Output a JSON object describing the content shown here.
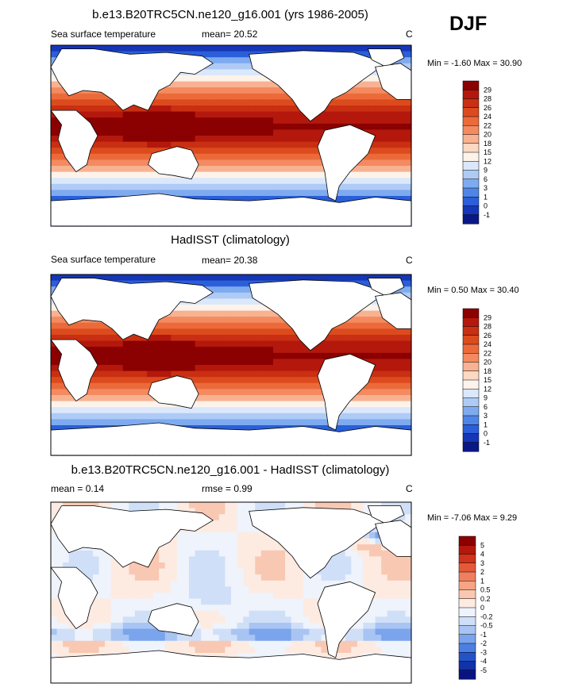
{
  "page": {
    "season": "DJF"
  },
  "panels": [
    {
      "title": "b.e13.B20TRC5CN.ne120_g16.001 (yrs 1986-2005)",
      "left_label": "Sea surface temperature",
      "center_label": "mean=  20.52",
      "units": "C",
      "minmax": "Min =  -1.60 Max =  30.90"
    },
    {
      "title": "HadISST (climatology)",
      "left_label": "Sea surface temperature",
      "center_label": "mean=  20.38",
      "units": "C",
      "minmax": "Min =   0.50 Max =  30.40"
    },
    {
      "title": "b.e13.B20TRC5CN.ne120_g16.001 - HadISST (climatology)",
      "left_label": "mean =   0.14",
      "center_label": "rmse =   0.99",
      "units": "C",
      "minmax": "Min =  -7.06 Max =   9.29"
    }
  ],
  "chart_data": [
    {
      "type": "heatmap",
      "title": "b.e13.B20TRC5CN.ne120_g16.001 (yrs 1986-2005)",
      "variable": "Sea surface temperature",
      "units": "C",
      "mean": 20.52,
      "min": -1.6,
      "max": 30.9,
      "colorbar_levels": [
        "29",
        "28",
        "26",
        "24",
        "22",
        "20",
        "18",
        "15",
        "12",
        "9",
        "6",
        "3",
        "1",
        "0",
        "-1"
      ],
      "colorbar_colors": [
        "#8b0000",
        "#b4180c",
        "#c92f12",
        "#dc4b1e",
        "#ec6a3a",
        "#f48a60",
        "#f8b291",
        "#fdd8c2",
        "#fdf3ea",
        "#dbe8fb",
        "#aecbf6",
        "#7eaaf0",
        "#4f86e6",
        "#2a5fd9",
        "#1536b7",
        "#0a1885"
      ],
      "layout_note": "global map, 180W-180E with Pacific centered"
    },
    {
      "type": "heatmap",
      "title": "HadISST (climatology)",
      "variable": "Sea surface temperature",
      "units": "C",
      "mean": 20.38,
      "min": 0.5,
      "max": 30.4,
      "colorbar_levels": [
        "29",
        "28",
        "26",
        "24",
        "22",
        "20",
        "18",
        "15",
        "12",
        "9",
        "6",
        "3",
        "1",
        "0",
        "-1"
      ],
      "colorbar_colors": [
        "#8b0000",
        "#b4180c",
        "#c92f12",
        "#dc4b1e",
        "#ec6a3a",
        "#f48a60",
        "#f8b291",
        "#fdd8c2",
        "#fdf3ea",
        "#dbe8fb",
        "#aecbf6",
        "#7eaaf0",
        "#4f86e6",
        "#2a5fd9",
        "#1536b7",
        "#0a1885"
      ]
    },
    {
      "type": "heatmap",
      "title": "b.e13.B20TRC5CN.ne120_g16.001 - HadISST (climatology)",
      "units": "C",
      "mean": 0.14,
      "rmse": 0.99,
      "min": -7.06,
      "max": 9.29,
      "colorbar_levels": [
        "5",
        "4",
        "3",
        "2",
        "1",
        "0.5",
        "0.2",
        "0",
        "-0.2",
        "-0.5",
        "-1",
        "-2",
        "-3",
        "-4",
        "-5"
      ],
      "colorbar_colors": [
        "#8b0000",
        "#b4180c",
        "#d0331a",
        "#e6583a",
        "#f07f60",
        "#f5a486",
        "#f9c8b2",
        "#fdebe2",
        "#eef3fc",
        "#cfdff8",
        "#a8c4f3",
        "#7aa4ec",
        "#4c7fe2",
        "#2453c9",
        "#1232a8",
        "#0a1480"
      ]
    }
  ]
}
